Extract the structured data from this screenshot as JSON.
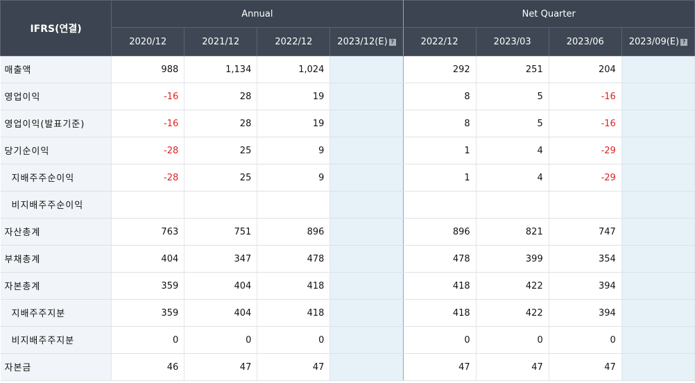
{
  "header": {
    "corner": "IFRS(연결)",
    "annual_label": "Annual",
    "quarter_label": "Net Quarter",
    "estimate_icon": "?"
  },
  "periods": [
    "2020/12",
    "2021/12",
    "2022/12",
    "2023/12(E)",
    "2022/12",
    "2023/03",
    "2023/06",
    "2023/09(E)"
  ],
  "rows": [
    {
      "label": "매출액",
      "values": [
        "988",
        "1,134",
        "1,024",
        "",
        "292",
        "251",
        "204",
        ""
      ]
    },
    {
      "label": "영업이익",
      "values": [
        "-16",
        "28",
        "19",
        "",
        "8",
        "5",
        "-16",
        ""
      ]
    },
    {
      "label": "영업이익(발표기준)",
      "values": [
        "-16",
        "28",
        "19",
        "",
        "8",
        "5",
        "-16",
        ""
      ]
    },
    {
      "label": "당기순이익",
      "values": [
        "-28",
        "25",
        "9",
        "",
        "1",
        "4",
        "-29",
        ""
      ]
    },
    {
      "label": "지배주주순이익",
      "values": [
        "-28",
        "25",
        "9",
        "",
        "1",
        "4",
        "-29",
        ""
      ]
    },
    {
      "label": "비지배주주순이익",
      "values": [
        "",
        "",
        "",
        "",
        "",
        "",
        "",
        ""
      ]
    },
    {
      "label": "자산총계",
      "values": [
        "763",
        "751",
        "896",
        "",
        "896",
        "821",
        "747",
        ""
      ]
    },
    {
      "label": "부채총계",
      "values": [
        "404",
        "347",
        "478",
        "",
        "478",
        "399",
        "354",
        ""
      ]
    },
    {
      "label": "자본총계",
      "values": [
        "359",
        "404",
        "418",
        "",
        "418",
        "422",
        "394",
        ""
      ]
    },
    {
      "label": "지배주주지분",
      "values": [
        "359",
        "404",
        "418",
        "",
        "418",
        "422",
        "394",
        ""
      ]
    },
    {
      "label": "비지배주주지분",
      "values": [
        "0",
        "0",
        "0",
        "",
        "0",
        "0",
        "0",
        ""
      ]
    },
    {
      "label": "자본금",
      "values": [
        "46",
        "47",
        "47",
        "",
        "47",
        "47",
        "47",
        ""
      ]
    }
  ],
  "colors": {
    "header_bg": "#3b4450",
    "label_bg": "#f1f4f8",
    "estimate_bg": "#e6f2f8",
    "negative": "#e02020"
  }
}
